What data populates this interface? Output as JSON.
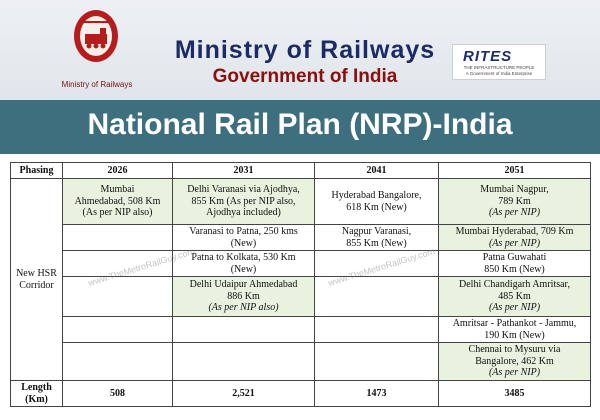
{
  "header": {
    "logo_caption": "Ministry of Railways",
    "title": "Ministry of Railways",
    "subtitle": "Government of India",
    "rites_name": "RITES",
    "rites_tagline": "THE INFRASTRUCTURE PEOPLE",
    "rites_tagline2": "A Government of India Enterprise"
  },
  "banner": {
    "title": "National Rail Plan (NRP)-India"
  },
  "table": {
    "headers": [
      "Phasing",
      "2026",
      "2031",
      "2041",
      "2051"
    ],
    "row_label": "New HSR Corridor",
    "rows": [
      {
        "c2026": {
          "lines": [
            "Mumbai",
            "Ahmedabad, 508 Km",
            "(As per NIP also)"
          ]
        },
        "c2031": {
          "lines": [
            "Delhi Varanasi via Ajodhya,",
            "855 Km (As per NIP also,",
            "Ajodhya included)"
          ]
        },
        "c2041": {
          "lines": [
            "Hyderabad Bangalore,",
            "618 Km (New)"
          ]
        },
        "c2051": {
          "lines": [
            "Mumbai Nagpur,",
            "789 Km",
            "(As per NIP)"
          ]
        }
      },
      {
        "c2031": {
          "lines": [
            "Varanasi to Patna, 250 kms",
            "(New)"
          ]
        },
        "c2041": {
          "lines": [
            "Nagpur Varanasi,",
            "855 Km (New)"
          ]
        },
        "c2051": {
          "lines": [
            "Mumbai Hyderabad, 709 Km",
            "(As per NIP)"
          ]
        }
      },
      {
        "c2031": {
          "lines": [
            "Patna to Kolkata, 530 Km",
            "(New)"
          ]
        },
        "c2051": {
          "lines": [
            "Patna Guwahati",
            "850 Km (New)"
          ]
        }
      },
      {
        "c2031": {
          "lines": [
            "Delhi Udaipur Ahmedabad",
            "886 Km",
            "(As per NIP also)"
          ]
        },
        "c2051": {
          "lines": [
            "Delhi Chandigarh Amritsar,",
            "485 Km",
            "(As per NIP)"
          ]
        }
      },
      {
        "c2051": {
          "lines": [
            "Amritsar - Pathankot - Jammu,",
            "190 Km (New)"
          ]
        }
      },
      {
        "c2051": {
          "lines": [
            "Chennai to Mysuru via",
            "Bangalore, 462 Km",
            "(As per NIP)"
          ]
        }
      }
    ],
    "length_label": "Length (Km)",
    "lengths": [
      "508",
      "2,521",
      "1473",
      "3485"
    ]
  },
  "watermark": "www.TheMetroRailGuy.com"
}
